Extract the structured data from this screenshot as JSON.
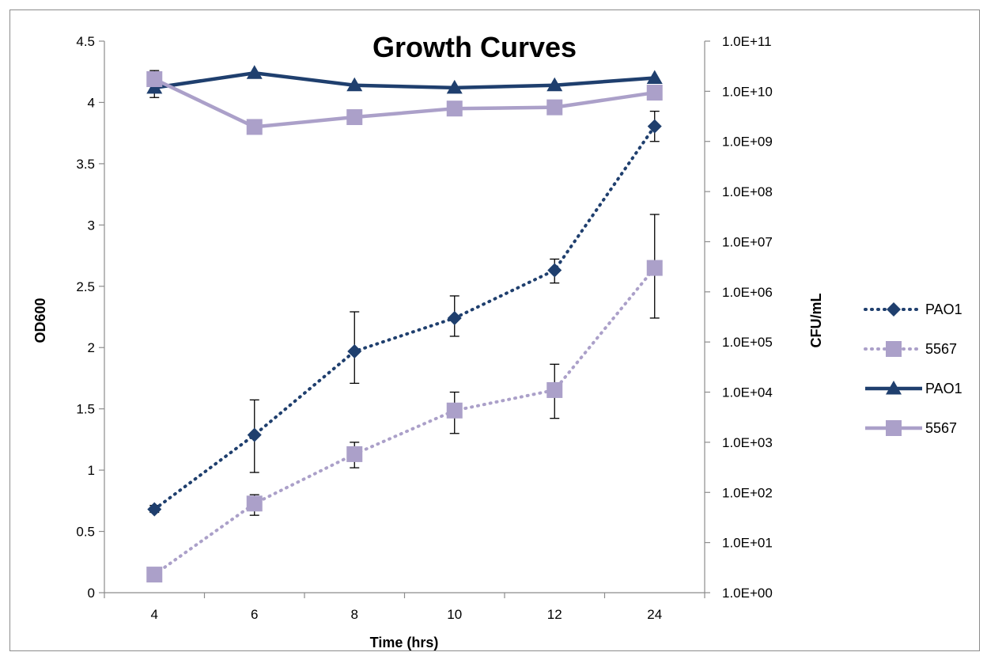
{
  "chart_data": {
    "type": "line",
    "title": "Growth Curves",
    "xlabel": "Time (hrs)",
    "ylabel": "OD600",
    "y2label": "CFU/mL",
    "categories": [
      "4",
      "6",
      "8",
      "10",
      "12",
      "24"
    ],
    "ylim": [
      0,
      4.5
    ],
    "yticks": [
      "0",
      "0.5",
      "1",
      "1.5",
      "2",
      "2.5",
      "3",
      "3.5",
      "4",
      "4.5"
    ],
    "y2_scale": "log",
    "y2lim": [
      1,
      100000000000
    ],
    "y2ticks": [
      "1.0E+00",
      "1.0E+01",
      "1.0E+02",
      "1.0E+03",
      "1.0E+04",
      "1.0E+05",
      "1.0E+06",
      "1.0E+07",
      "1.0E+08",
      "1.0E+09",
      "1.0E+10",
      "1.0E+11"
    ],
    "grid": false,
    "legend_position": "right",
    "series": [
      {
        "name": "PAO1",
        "axis": "y2",
        "line_style": "dotted",
        "marker": "diamond",
        "color": "#1F3F6E",
        "values": [
          46,
          1400,
          65000,
          300000,
          2700000,
          2000000000
        ],
        "error_low": [
          40,
          250,
          15000,
          130000,
          1500000,
          1000000000
        ],
        "error_high": [
          55,
          7000,
          400000,
          830000,
          4500000,
          4000000000
        ]
      },
      {
        "name": "5567",
        "axis": "y2",
        "line_style": "dotted",
        "marker": "square",
        "color": "#ABA0C9",
        "values": [
          2.3,
          60,
          580,
          4300,
          11000,
          3000000
        ],
        "error_low": [
          2.1,
          35,
          310,
          1500,
          3000,
          300000
        ],
        "error_high": [
          2.5,
          90,
          1000,
          10000,
          36000,
          35000000
        ]
      },
      {
        "name": "PAO1",
        "axis": "y",
        "line_style": "solid",
        "marker": "triangle",
        "color": "#1F3F6E",
        "values": [
          4.12,
          4.24,
          4.14,
          4.12,
          4.14,
          4.2
        ],
        "error_low": [
          4.04,
          null,
          null,
          null,
          null,
          null
        ],
        "error_high": [
          4.26,
          null,
          null,
          null,
          null,
          null
        ]
      },
      {
        "name": "5567",
        "axis": "y",
        "line_style": "solid",
        "marker": "square",
        "color": "#ABA0C9",
        "values": [
          4.19,
          3.8,
          3.88,
          3.95,
          3.96,
          4.08
        ],
        "error_low": [
          null,
          null,
          null,
          null,
          null,
          null
        ],
        "error_high": [
          null,
          null,
          null,
          null,
          null,
          null
        ]
      }
    ]
  }
}
